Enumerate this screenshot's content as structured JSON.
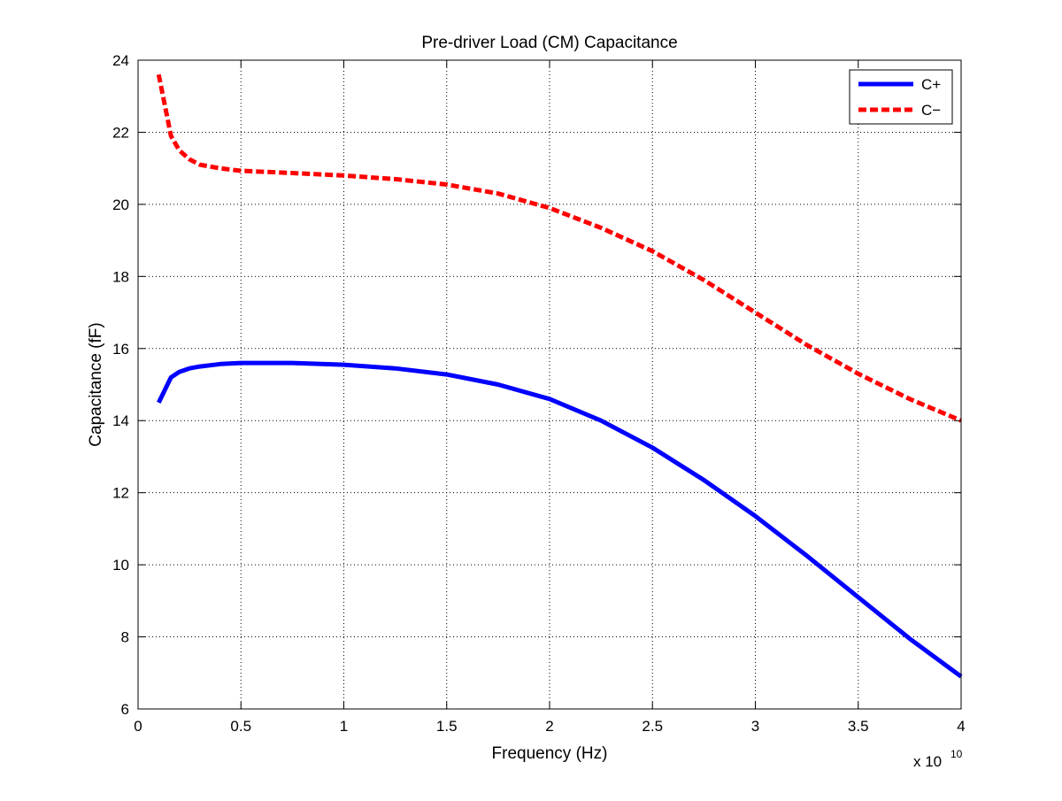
{
  "chart_data": {
    "type": "line",
    "title": "Pre-driver Load (CM) Capacitance",
    "xlabel": "Frequency (Hz)",
    "ylabel": "Capacitance (fF)",
    "x_multiplier_label": "x 10",
    "x_multiplier_exponent": "10",
    "xlim": [
      0,
      4
    ],
    "ylim": [
      6,
      24
    ],
    "x_ticks": [
      0,
      0.5,
      1,
      1.5,
      2,
      2.5,
      3,
      3.5,
      4
    ],
    "x_tick_labels": [
      "0",
      "0.5",
      "1",
      "1.5",
      "2",
      "2.5",
      "3",
      "3.5",
      "4"
    ],
    "y_ticks": [
      6,
      8,
      10,
      12,
      14,
      16,
      18,
      20,
      22,
      24
    ],
    "y_tick_labels": [
      "6",
      "8",
      "10",
      "12",
      "14",
      "16",
      "18",
      "20",
      "22",
      "24"
    ],
    "grid": true,
    "legend_position": "top-right",
    "x": [
      0.1,
      0.16,
      0.2,
      0.25,
      0.3,
      0.4,
      0.5,
      0.75,
      1.0,
      1.25,
      1.5,
      1.75,
      2.0,
      2.25,
      2.5,
      2.75,
      3.0,
      3.25,
      3.5,
      3.75,
      4.0
    ],
    "series": [
      {
        "name": "C+",
        "color": "#0000ff",
        "dash": "solid",
        "values": [
          14.5,
          15.2,
          15.35,
          15.45,
          15.5,
          15.57,
          15.6,
          15.6,
          15.55,
          15.45,
          15.28,
          15.0,
          14.6,
          14.0,
          13.25,
          12.35,
          11.35,
          10.25,
          9.1,
          7.95,
          6.9
        ]
      },
      {
        "name": "C−",
        "color": "#ff0000",
        "dash": "dashed",
        "values": [
          23.6,
          21.9,
          21.5,
          21.25,
          21.1,
          21.0,
          20.93,
          20.87,
          20.8,
          20.7,
          20.55,
          20.3,
          19.9,
          19.35,
          18.7,
          17.9,
          17.0,
          16.1,
          15.3,
          14.6,
          14.0
        ]
      }
    ]
  }
}
